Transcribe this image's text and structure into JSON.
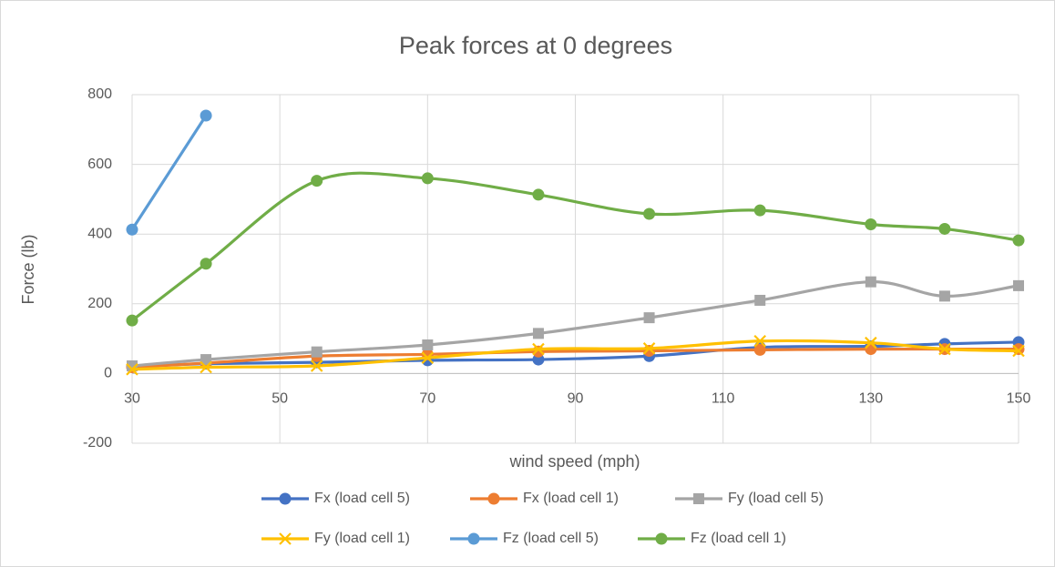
{
  "chart_data": {
    "type": "line",
    "title": "Peak forces at 0 degrees",
    "x_label": "wind speed (mph)",
    "y_label": "Force (lb)",
    "x": [
      30,
      40,
      55,
      70,
      85,
      100,
      115,
      130,
      140,
      150
    ],
    "xlim": [
      30,
      150
    ],
    "xticks": [
      30,
      50,
      70,
      90,
      110,
      130,
      150
    ],
    "ylim": [
      -200,
      800
    ],
    "yticks": [
      -200,
      0,
      200,
      400,
      600,
      800
    ],
    "grid": true,
    "smooth": true,
    "legend": "bottom",
    "series": [
      {
        "name": "Fx (load cell 5)",
        "color": "#4472c4",
        "marker": "circle",
        "values": [
          20,
          28,
          32,
          38,
          40,
          50,
          75,
          78,
          85,
          90
        ]
      },
      {
        "name": "Fx (load cell 1)",
        "color": "#ed7d31",
        "marker": "circle",
        "values": [
          18,
          30,
          50,
          55,
          63,
          65,
          68,
          70,
          70,
          70
        ]
      },
      {
        "name": "Fy (load cell 5)",
        "color": "#a5a5a5",
        "marker": "square",
        "values": [
          22,
          40,
          62,
          82,
          115,
          160,
          210,
          263,
          222,
          252
        ]
      },
      {
        "name": "Fy (load cell 1)",
        "color": "#ffc000",
        "marker": "x",
        "values": [
          12,
          18,
          22,
          45,
          70,
          72,
          93,
          88,
          70,
          65
        ]
      },
      {
        "name": "Fz (load cell 5)",
        "color": "#5b9bd5",
        "marker": "circle",
        "values": [
          413,
          740,
          null,
          null,
          null,
          null,
          null,
          null,
          null,
          null
        ]
      },
      {
        "name": "Fz (load cell 1)",
        "color": "#70ad47",
        "marker": "circle",
        "values": [
          152,
          315,
          553,
          560,
          513,
          458,
          468,
          428,
          415,
          382
        ]
      }
    ]
  }
}
